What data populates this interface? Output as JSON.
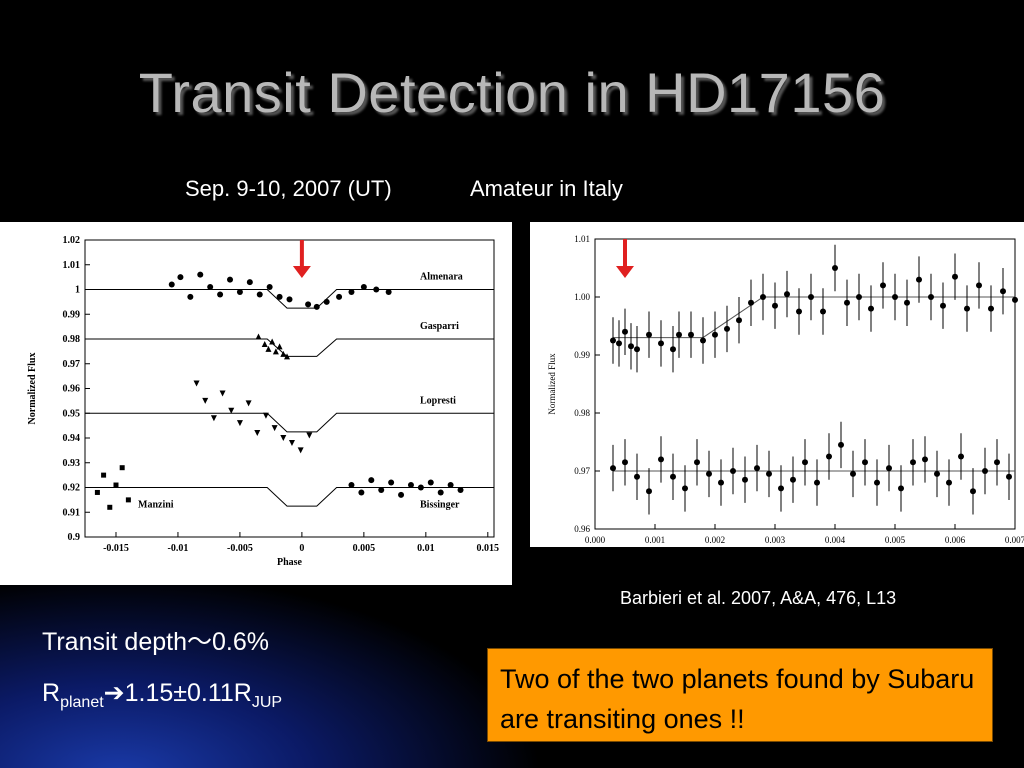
{
  "slide": {
    "title": "Transit Detection in HD17156",
    "date_label": "Sep. 9-10, 2007 (UT)",
    "observer_label": "Amateur in Italy",
    "citation": "Barbieri et al. 2007, A&A, 476, L13",
    "transit_depth": {
      "label": "Transit depth",
      "tilde": "〜",
      "value": "0.6%"
    },
    "radius": {
      "r": "R",
      "sub_planet": "planet",
      "arrow": "➔",
      "value": "1.15±0.11R",
      "sub_jup": "JUP"
    },
    "callout": "Two of the two planets found by Subaru are transiting ones !!"
  },
  "colors": {
    "accent_arrow": "#e02020",
    "callout_bg": "#ff9900",
    "title": "#b8b8b8"
  },
  "chart_data": [
    {
      "type": "scatter",
      "xlabel": "Phase",
      "ylabel": "Normalized Flux",
      "xlim": [
        -0.0175,
        0.0155
      ],
      "ylim": [
        0.9,
        1.02
      ],
      "xticks": [
        "-0.015",
        "-0.01",
        "-0.005",
        "0",
        "0.005",
        "0.01",
        "0.015"
      ],
      "xtick_values": [
        -0.015,
        -0.01,
        -0.005,
        0,
        0.005,
        0.01,
        0.015
      ],
      "yticks": [
        "1.02",
        "1.01",
        "1",
        "0.99",
        "0.98",
        "0.97",
        "0.96",
        "0.95",
        "0.94",
        "0.93",
        "0.92",
        "0.91",
        "0.9"
      ],
      "ytick_values": [
        1.02,
        1.01,
        1.0,
        0.99,
        0.98,
        0.97,
        0.96,
        0.95,
        0.94,
        0.93,
        0.92,
        0.91,
        0.9
      ],
      "arrow_phase": 0.0,
      "series": [
        {
          "name": "Almenara",
          "marker": "circle",
          "baseline": 1.0,
          "depth": 0.0075,
          "points": [
            [
              -0.0105,
              1.002
            ],
            [
              -0.0098,
              1.005
            ],
            [
              -0.009,
              0.997
            ],
            [
              -0.0082,
              1.006
            ],
            [
              -0.0074,
              1.001
            ],
            [
              -0.0066,
              0.998
            ],
            [
              -0.0058,
              1.004
            ],
            [
              -0.005,
              0.999
            ],
            [
              -0.0042,
              1.003
            ],
            [
              -0.0034,
              0.998
            ],
            [
              -0.0026,
              1.001
            ],
            [
              -0.0018,
              0.997
            ],
            [
              -0.001,
              0.996
            ],
            [
              0.0005,
              0.994
            ],
            [
              0.0012,
              0.993
            ],
            [
              0.002,
              0.995
            ],
            [
              0.003,
              0.997
            ],
            [
              0.004,
              0.999
            ],
            [
              0.005,
              1.001
            ],
            [
              0.006,
              1.0
            ],
            [
              0.007,
              0.999
            ]
          ]
        },
        {
          "name": "Gasparri",
          "marker": "triangle-up",
          "baseline": 0.98,
          "depth": 0.007,
          "points": [
            [
              -0.0035,
              0.981
            ],
            [
              -0.003,
              0.978
            ],
            [
              -0.0027,
              0.976
            ],
            [
              -0.0024,
              0.979
            ],
            [
              -0.0021,
              0.975
            ],
            [
              -0.0018,
              0.977
            ],
            [
              -0.0015,
              0.974
            ],
            [
              -0.0012,
              0.973
            ]
          ]
        },
        {
          "name": "Lopresti",
          "marker": "triangle-down",
          "baseline": 0.95,
          "depth": 0.0075,
          "points": [
            [
              -0.0085,
              0.962
            ],
            [
              -0.0078,
              0.955
            ],
            [
              -0.0071,
              0.948
            ],
            [
              -0.0064,
              0.958
            ],
            [
              -0.0057,
              0.951
            ],
            [
              -0.005,
              0.946
            ],
            [
              -0.0043,
              0.954
            ],
            [
              -0.0036,
              0.942
            ],
            [
              -0.0029,
              0.949
            ],
            [
              -0.0022,
              0.944
            ],
            [
              -0.0015,
              0.94
            ],
            [
              -0.0008,
              0.938
            ],
            [
              -0.0001,
              0.935
            ],
            [
              0.0006,
              0.941
            ]
          ]
        },
        {
          "name": "Manzini",
          "marker": "square",
          "baseline": 0.92,
          "depth": 0.0,
          "points": [
            [
              -0.0165,
              0.918
            ],
            [
              -0.016,
              0.925
            ],
            [
              -0.0155,
              0.912
            ],
            [
              -0.015,
              0.921
            ],
            [
              -0.0145,
              0.928
            ],
            [
              -0.014,
              0.915
            ]
          ]
        },
        {
          "name": "Bissinger",
          "marker": "circle",
          "baseline": 0.92,
          "depth": 0.0075,
          "points": [
            [
              0.004,
              0.921
            ],
            [
              0.0048,
              0.918
            ],
            [
              0.0056,
              0.923
            ],
            [
              0.0064,
              0.919
            ],
            [
              0.0072,
              0.922
            ],
            [
              0.008,
              0.917
            ],
            [
              0.0088,
              0.921
            ],
            [
              0.0096,
              0.92
            ],
            [
              0.0104,
              0.922
            ],
            [
              0.0112,
              0.918
            ],
            [
              0.012,
              0.921
            ],
            [
              0.0128,
              0.919
            ]
          ]
        }
      ],
      "model": {
        "ingress_start": -0.0028,
        "flat_start": -0.0012,
        "flat_end": 0.0012,
        "egress_end": 0.0028
      }
    },
    {
      "type": "scatter",
      "xlabel": "Phase",
      "ylabel": "Normalized Flux",
      "xlim": [
        0.0,
        0.007
      ],
      "ylim": [
        0.96,
        1.01
      ],
      "xticks": [
        "0.000",
        "0.001",
        "0.002",
        "0.003",
        "0.004",
        "0.005",
        "0.006",
        "0.007"
      ],
      "xtick_values": [
        0,
        0.001,
        0.002,
        0.003,
        0.004,
        0.005,
        0.006,
        0.007
      ],
      "yticks": [
        "1.01",
        "1.00",
        "0.99",
        "0.98",
        "0.97",
        "0.96"
      ],
      "ytick_values": [
        1.01,
        1.0,
        0.99,
        0.98,
        0.97,
        0.96
      ],
      "arrow_phase": 0.0005,
      "series": [
        {
          "name": "upper",
          "baseline": 1.0,
          "depth": 0.007,
          "err": 0.004,
          "points": [
            [
              0.0003,
              0.9925
            ],
            [
              0.0004,
              0.992
            ],
            [
              0.0005,
              0.994
            ],
            [
              0.0006,
              0.9915
            ],
            [
              0.0007,
              0.991
            ],
            [
              0.0009,
              0.9935
            ],
            [
              0.0011,
              0.992
            ],
            [
              0.0013,
              0.991
            ],
            [
              0.0014,
              0.9935
            ],
            [
              0.0016,
              0.9935
            ],
            [
              0.0018,
              0.9925
            ],
            [
              0.002,
              0.9935
            ],
            [
              0.0022,
              0.9945
            ],
            [
              0.0024,
              0.996
            ],
            [
              0.0026,
              0.999
            ],
            [
              0.0028,
              1.0
            ],
            [
              0.003,
              0.9985
            ],
            [
              0.0032,
              1.0005
            ],
            [
              0.0034,
              0.9975
            ],
            [
              0.0036,
              1.0
            ],
            [
              0.0038,
              0.9975
            ],
            [
              0.004,
              1.005
            ],
            [
              0.0042,
              0.999
            ],
            [
              0.0044,
              1.0
            ],
            [
              0.0046,
              0.998
            ],
            [
              0.0048,
              1.002
            ],
            [
              0.005,
              1.0
            ],
            [
              0.0052,
              0.999
            ],
            [
              0.0054,
              1.003
            ],
            [
              0.0056,
              1.0
            ],
            [
              0.0058,
              0.9985
            ],
            [
              0.006,
              1.0035
            ],
            [
              0.0062,
              0.998
            ],
            [
              0.0064,
              1.002
            ],
            [
              0.0066,
              0.998
            ],
            [
              0.0068,
              1.001
            ],
            [
              0.007,
              0.9995
            ]
          ]
        },
        {
          "name": "lower",
          "baseline": 0.97,
          "depth": 0.0,
          "err": 0.004,
          "points": [
            [
              0.0003,
              0.9705
            ],
            [
              0.0005,
              0.9715
            ],
            [
              0.0007,
              0.969
            ],
            [
              0.0009,
              0.9665
            ],
            [
              0.0011,
              0.972
            ],
            [
              0.0013,
              0.969
            ],
            [
              0.0015,
              0.967
            ],
            [
              0.0017,
              0.9715
            ],
            [
              0.0019,
              0.9695
            ],
            [
              0.0021,
              0.968
            ],
            [
              0.0023,
              0.97
            ],
            [
              0.0025,
              0.9685
            ],
            [
              0.0027,
              0.9705
            ],
            [
              0.0029,
              0.9695
            ],
            [
              0.0031,
              0.967
            ],
            [
              0.0033,
              0.9685
            ],
            [
              0.0035,
              0.9715
            ],
            [
              0.0037,
              0.968
            ],
            [
              0.0039,
              0.9725
            ],
            [
              0.0041,
              0.9745
            ],
            [
              0.0043,
              0.9695
            ],
            [
              0.0045,
              0.9715
            ],
            [
              0.0047,
              0.968
            ],
            [
              0.0049,
              0.9705
            ],
            [
              0.0051,
              0.967
            ],
            [
              0.0053,
              0.9715
            ],
            [
              0.0055,
              0.972
            ],
            [
              0.0057,
              0.9695
            ],
            [
              0.0059,
              0.968
            ],
            [
              0.0061,
              0.9725
            ],
            [
              0.0063,
              0.9665
            ],
            [
              0.0065,
              0.97
            ],
            [
              0.0067,
              0.9715
            ],
            [
              0.0069,
              0.969
            ]
          ]
        }
      ]
    }
  ]
}
